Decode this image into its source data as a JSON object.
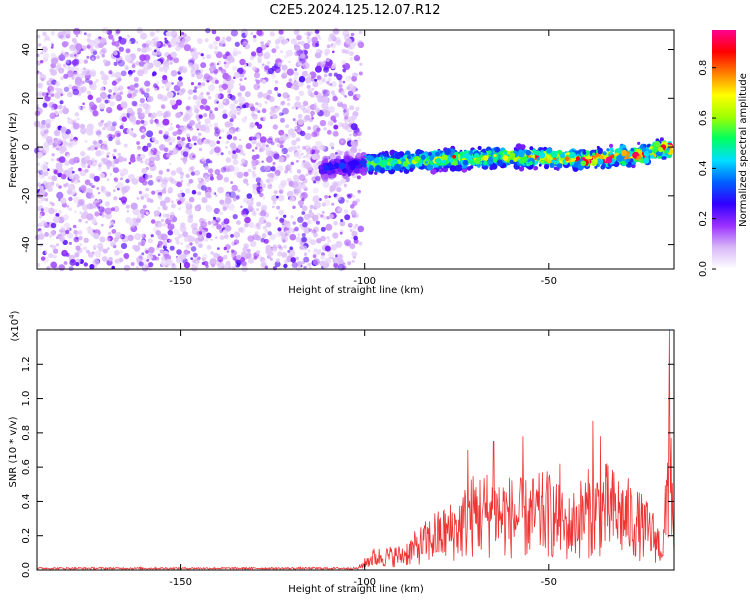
{
  "title": "C2E5.2024.125.12.07.R12",
  "chart_data": [
    {
      "type": "heatmap",
      "xlabel": "Height of straight line (km)",
      "ylabel": "Frequency (Hz)",
      "xlim": [
        -189,
        -16
      ],
      "ylim": [
        -50,
        48
      ],
      "xticks": [
        -150,
        -100,
        -50
      ],
      "yticks": [
        40,
        20,
        0,
        -20,
        -40
      ],
      "noise_region_x": [
        -189,
        -101
      ],
      "signal_band": {
        "x_start": -112,
        "x_end": -17,
        "center_frequency_hz": [
          {
            "x": -112,
            "y": -9
          },
          {
            "x": -100,
            "y": -7
          },
          {
            "x": -80,
            "y": -5
          },
          {
            "x": -60,
            "y": -4
          },
          {
            "x": -40,
            "y": -5
          },
          {
            "x": -25,
            "y": -3
          },
          {
            "x": -17,
            "y": 0
          }
        ],
        "half_width_hz": 4,
        "peak_amplitude": 0.95
      },
      "colorbar": {
        "label": "Normalized spectral amplitude",
        "range": [
          0,
          0.95
        ],
        "ticks": [
          "0.0",
          "0.2",
          "0.4",
          "0.6",
          "0.8"
        ],
        "tick_values": [
          0.0,
          0.2,
          0.4,
          0.6,
          0.8
        ],
        "colormap": [
          "#ffffff",
          "#d8b8f8",
          "#9b30ff",
          "#3000ff",
          "#0060ff",
          "#00e0ff",
          "#00ff60",
          "#a0ff00",
          "#ffff00",
          "#ff8000",
          "#ff0000",
          "#ff0090"
        ]
      }
    },
    {
      "type": "line",
      "xlabel": "Height of straight line (km)",
      "ylabel": "SNR (10 * v/v)",
      "y_multiplier": "(x10",
      "y_multiplier_exp": "4",
      "y_multiplier_close": ")",
      "xlim": [
        -189,
        -16
      ],
      "ylim": [
        0,
        1.4
      ],
      "xticks": [
        -150,
        -100,
        -50
      ],
      "yticks": [
        "0.0",
        "0.2",
        "0.4",
        "0.6",
        "0.8",
        "1.0",
        "1.2"
      ],
      "ytick_values": [
        0.0,
        0.2,
        0.4,
        0.6,
        0.8,
        1.0,
        1.2
      ],
      "series": [
        {
          "color": "#ee3333",
          "envelope": [
            {
              "x": -189,
              "y": 0.01
            },
            {
              "x": -102,
              "y": 0.01
            },
            {
              "x": -98,
              "y": 0.12
            },
            {
              "x": -90,
              "y": 0.14
            },
            {
              "x": -82,
              "y": 0.3
            },
            {
              "x": -75,
              "y": 0.4
            },
            {
              "x": -70,
              "y": 0.55
            },
            {
              "x": -65,
              "y": 0.55
            },
            {
              "x": -57,
              "y": 0.5
            },
            {
              "x": -50,
              "y": 0.55
            },
            {
              "x": -45,
              "y": 0.4
            },
            {
              "x": -40,
              "y": 0.55
            },
            {
              "x": -35,
              "y": 0.6
            },
            {
              "x": -28,
              "y": 0.5
            },
            {
              "x": -22,
              "y": 0.35
            },
            {
              "x": -19,
              "y": 0.2
            },
            {
              "x": -18,
              "y": 0.62
            },
            {
              "x": -17.2,
              "y": 1.42
            },
            {
              "x": -16,
              "y": 0.08
            }
          ],
          "peaks": [
            {
              "x": -81,
              "y": 0.33
            },
            {
              "x": -72,
              "y": 0.7
            },
            {
              "x": -65,
              "y": 0.75
            },
            {
              "x": -57,
              "y": 0.78
            },
            {
              "x": -47,
              "y": 0.62
            },
            {
              "x": -38,
              "y": 0.87
            },
            {
              "x": -36,
              "y": 0.78
            },
            {
              "x": -17.2,
              "y": 1.42
            }
          ]
        }
      ]
    }
  ]
}
